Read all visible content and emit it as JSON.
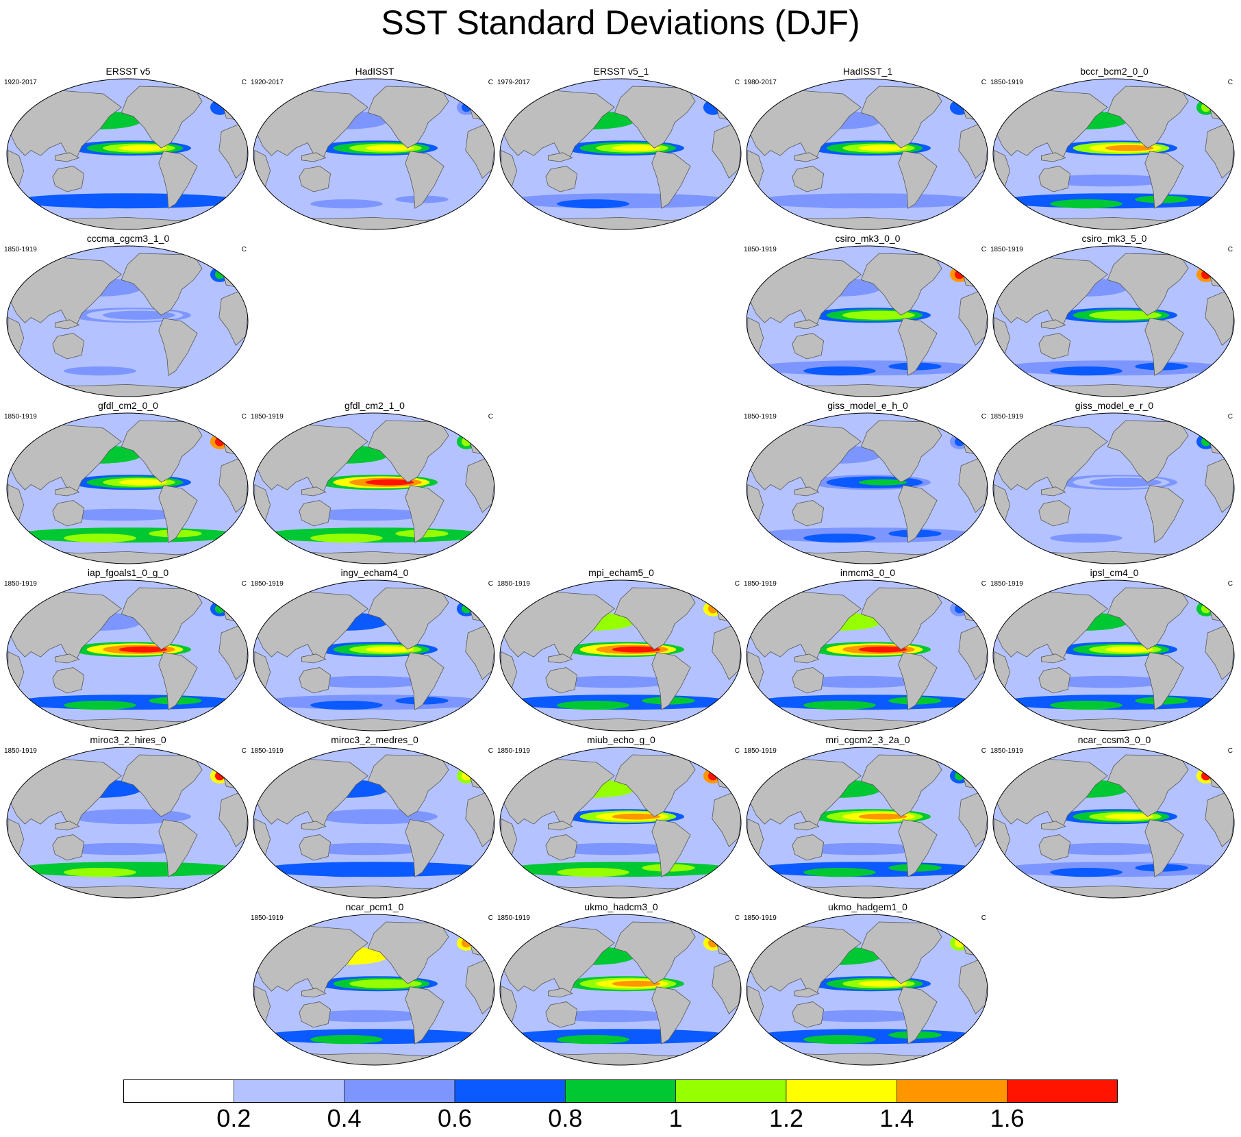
{
  "title": "SST Standard Deviations (DJF)",
  "units": "C",
  "chart_data": {
    "type": "heatmap",
    "title": "SST Standard Deviations (DJF)",
    "variable": "SST standard deviation",
    "season": "DJF",
    "units": "C",
    "colorbar": {
      "levels": [
        0.2,
        0.4,
        0.6,
        0.8,
        1,
        1.2,
        1.4,
        1.6
      ],
      "tick_labels": [
        "0.2",
        "0.4",
        "0.6",
        "0.8",
        "1",
        "1.2",
        "1.4",
        "1.6"
      ],
      "colors": [
        "#ffffff",
        "#b4c3ff",
        "#7d96ff",
        "#0a5aff",
        "#00c832",
        "#96ff00",
        "#ffff00",
        "#ff9600",
        "#ff1400"
      ]
    },
    "panels": [
      {
        "name": "ERSST v5",
        "period": "1920-2017",
        "row": 0,
        "col": 0,
        "enso": 1.25,
        "nh": 0.9,
        "so": 0.75,
        "ho": 0.35,
        "kuro": 0.9,
        "gs": 0.75
      },
      {
        "name": "HadISST",
        "period": "1920-2017",
        "row": 0,
        "col": 1,
        "enso": 1.25,
        "nh": 0.55,
        "so": 0.45,
        "ho": 0.35,
        "kuro": 0.8,
        "gs": 0.7
      },
      {
        "name": "ERSST v5_1",
        "period": "1979-2017",
        "row": 0,
        "col": 2,
        "enso": 1.3,
        "nh": 0.9,
        "so": 0.6,
        "ho": 0.35,
        "kuro": 0.9,
        "gs": 0.75
      },
      {
        "name": "HadISST_1",
        "period": "1980-2017",
        "row": 0,
        "col": 3,
        "enso": 1.3,
        "nh": 0.55,
        "so": 0.5,
        "ho": 0.35,
        "kuro": 0.8,
        "gs": 0.75
      },
      {
        "name": "bccr_bcm2_0_0",
        "period": "1850-1919",
        "row": 0,
        "col": 4,
        "enso": 1.4,
        "nh": 0.8,
        "so": 0.9,
        "ho": 0.4,
        "kuro": 1.6,
        "gs": 1.05
      },
      {
        "name": "cccma_cgcm3_1_0",
        "period": "1850-1919",
        "row": 1,
        "col": 0,
        "enso": 0.5,
        "nh": 0.45,
        "so": 0.4,
        "ho": 0.3,
        "kuro": 0.45,
        "gs": 0.85
      },
      {
        "name": "csiro_mk3_0_0",
        "period": "1850-1919",
        "row": 1,
        "col": 3,
        "enso": 1.15,
        "nh": 0.5,
        "so": 0.7,
        "ho": 0.35,
        "kuro": 0.8,
        "gs": 1.7
      },
      {
        "name": "csiro_mk3_5_0",
        "period": "1850-1919",
        "row": 1,
        "col": 4,
        "enso": 1.15,
        "nh": 0.5,
        "so": 0.7,
        "ho": 0.35,
        "kuro": 0.75,
        "gs": 1.7
      },
      {
        "name": "gfdl_cm2_0_0",
        "period": "1850-1919",
        "row": 2,
        "col": 0,
        "enso": 1.3,
        "nh": 0.9,
        "so": 1.1,
        "ho": 0.4,
        "kuro": 1.7,
        "gs": 1.7
      },
      {
        "name": "gfdl_cm2_1_0",
        "period": "1850-1919",
        "row": 2,
        "col": 1,
        "enso": 1.6,
        "nh": 0.85,
        "so": 1.1,
        "ho": 0.45,
        "kuro": 1.7,
        "gs": 1.1
      },
      {
        "name": "giss_model_e_h_0",
        "period": "1850-1919",
        "row": 2,
        "col": 3,
        "enso": 0.85,
        "nh": 0.5,
        "so": 0.65,
        "ho": 0.3,
        "kuro": 0.9,
        "gs": 0.7
      },
      {
        "name": "giss_model_e_r_0",
        "period": "1850-1919",
        "row": 2,
        "col": 4,
        "enso": 0.45,
        "nh": 0.35,
        "so": 0.4,
        "ho": 0.25,
        "kuro": 0.6,
        "gs": 0.8
      },
      {
        "name": "iap_fgoals1_0_g_0",
        "period": "1850-1919",
        "row": 3,
        "col": 0,
        "enso": 1.75,
        "nh": 0.5,
        "so": 0.85,
        "ho": 0.35,
        "kuro": 1.0,
        "gs": 0.9
      },
      {
        "name": "ingv_echam4_0",
        "period": "1850-1919",
        "row": 3,
        "col": 1,
        "enso": 1.3,
        "nh": 0.75,
        "so": 0.7,
        "ho": 0.4,
        "kuro": 0.85,
        "gs": 0.85
      },
      {
        "name": "mpi_echam5_0",
        "period": "1850-1919",
        "row": 3,
        "col": 2,
        "enso": 1.7,
        "nh": 1.0,
        "so": 0.9,
        "ho": 0.55,
        "kuro": 1.7,
        "gs": 1.5
      },
      {
        "name": "inmcm3_0_0",
        "period": "1850-1919",
        "row": 3,
        "col": 3,
        "enso": 1.7,
        "nh": 1.0,
        "so": 0.9,
        "ho": 0.5,
        "kuro": 1.1,
        "gs": 0.6
      },
      {
        "name": "ipsl_cm4_0",
        "period": "1850-1919",
        "row": 3,
        "col": 4,
        "enso": 1.3,
        "nh": 0.8,
        "so": 0.9,
        "ho": 0.45,
        "kuro": 0.9,
        "gs": 1.1
      },
      {
        "name": "miroc3_2_hires_0",
        "period": "1850-1919",
        "row": 4,
        "col": 0,
        "enso": 0.55,
        "nh": 0.6,
        "so": 1.05,
        "ho": 0.4,
        "kuro": 1.1,
        "gs": 1.6
      },
      {
        "name": "miroc3_2_medres_0",
        "period": "1850-1919",
        "row": 4,
        "col": 1,
        "enso": 0.55,
        "nh": 0.75,
        "so": 0.75,
        "ho": 0.4,
        "kuro": 0.7,
        "gs": 1.3
      },
      {
        "name": "miub_echo_g_0",
        "period": "1850-1919",
        "row": 4,
        "col": 2,
        "enso": 1.4,
        "nh": 1.05,
        "so": 1.1,
        "ho": 0.45,
        "kuro": 0.9,
        "gs": 1.7
      },
      {
        "name": "mri_cgcm2_3_2a_0",
        "period": "1850-1919",
        "row": 4,
        "col": 3,
        "enso": 1.5,
        "nh": 0.85,
        "so": 0.85,
        "ho": 0.5,
        "kuro": 0.8,
        "gs": 0.8
      },
      {
        "name": "ncar_ccsm3_0_0",
        "period": "1850-1919",
        "row": 4,
        "col": 4,
        "enso": 1.25,
        "nh": 0.9,
        "so": 0.7,
        "ho": 0.4,
        "kuro": 1.7,
        "gs": 1.6
      },
      {
        "name": "ncar_pcm1_0",
        "period": "1850-1919",
        "row": 5,
        "col": 1,
        "enso": 1.15,
        "nh": 1.2,
        "so": 0.8,
        "ho": 0.45,
        "kuro": 0.9,
        "gs": 1.5
      },
      {
        "name": "ukmo_hadcm3_0",
        "period": "1850-1919",
        "row": 5,
        "col": 2,
        "enso": 1.5,
        "nh": 0.8,
        "so": 0.8,
        "ho": 0.5,
        "kuro": 1.7,
        "gs": 1.5
      },
      {
        "name": "ukmo_hadgem1_0",
        "period": "1850-1919",
        "row": 5,
        "col": 3,
        "enso": 1.2,
        "nh": 0.9,
        "so": 0.95,
        "ho": 0.5,
        "kuro": 1.2,
        "gs": 1.2
      }
    ]
  }
}
